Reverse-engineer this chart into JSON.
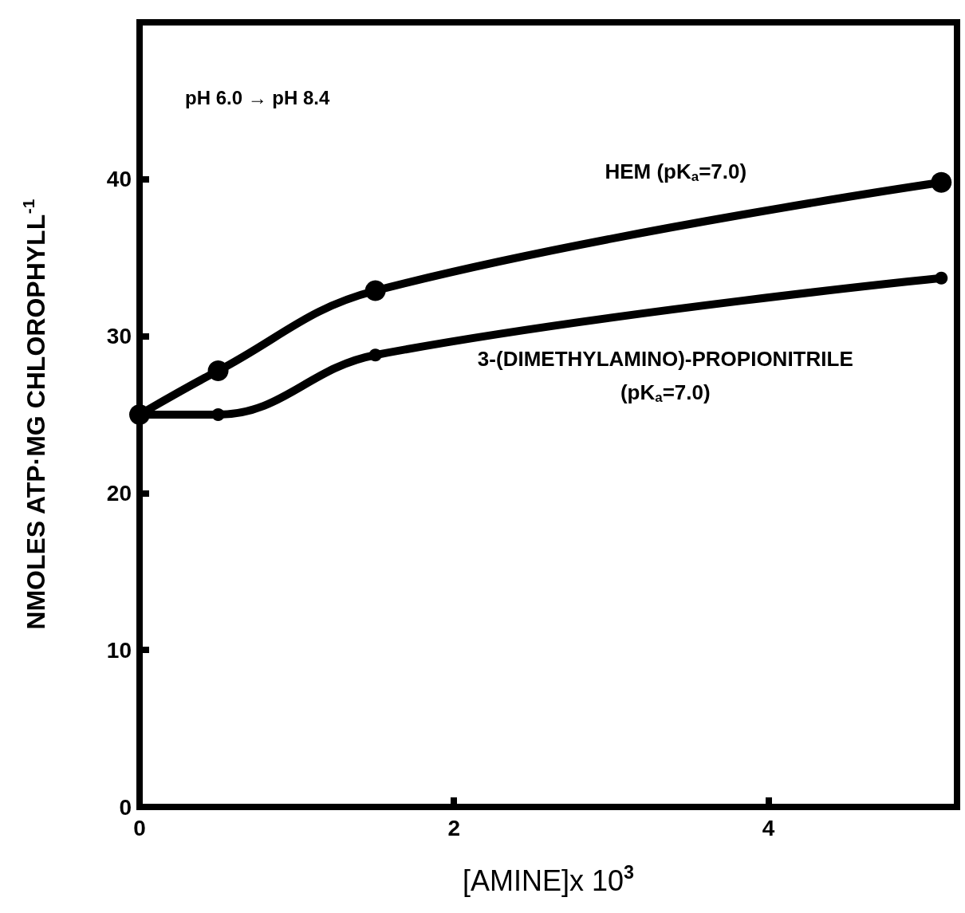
{
  "chart_data": {
    "type": "line",
    "xlabel": "[AMINE]x 10$^{3}$",
    "ylabel": "NMOLES ATP·MG CHLOROPHYLL$^{-1}$",
    "x": [
      0,
      0.5,
      1.5,
      5.1
    ],
    "series": [
      {
        "name": "HEM (pK$_{a}$=7.0)",
        "color": "#000000",
        "values": [
          25,
          27.8,
          32.9,
          39.8
        ]
      },
      {
        "name": "3-(DIMETHYLAMINO)-PROPIONITRILE\n(pK$_{a}$=7.0)",
        "color": "#000000",
        "values": [
          25,
          25,
          28.8,
          33.7
        ]
      }
    ],
    "xlim": [
      0,
      5.2
    ],
    "xticks": [
      0,
      2,
      4
    ],
    "ylim": [
      0,
      50
    ],
    "yticks": [
      0,
      10,
      20,
      30,
      40,
      {
        "value": 50,
        "label": null
      }
    ],
    "annotations": [
      "pH 6.0 → pH 8.4"
    ],
    "marker": "circle",
    "line_style": "solid",
    "grid": false,
    "legend": false
  }
}
